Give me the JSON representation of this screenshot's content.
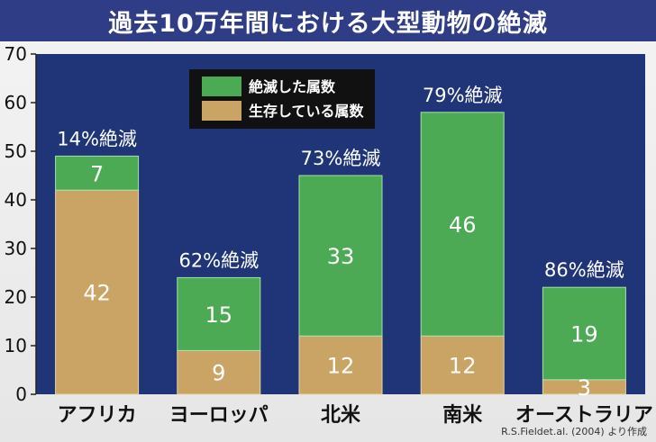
{
  "title": "過去10万年間における大型動物の絶滅",
  "source": "R.S.Fieldet.al. (2004) より作成",
  "chart_data": {
    "type": "bar",
    "stacked": true,
    "categories": [
      "アフリカ",
      "ヨーロッパ",
      "北米",
      "南米",
      "オーストラリア"
    ],
    "series": [
      {
        "name": "生存している属数",
        "values": [
          42,
          9,
          12,
          12,
          3
        ],
        "color": "#c9a464"
      },
      {
        "name": "絶滅した属数",
        "values": [
          7,
          15,
          33,
          46,
          19
        ],
        "color": "#4caa55"
      }
    ],
    "bar_labels": [
      "14%絶滅",
      "62%絶滅",
      "73%絶滅",
      "79%絶滅",
      "86%絶滅"
    ],
    "ylim": [
      0,
      70
    ],
    "yticks": [
      0,
      10,
      20,
      30,
      40,
      50,
      60,
      70
    ],
    "grid": false,
    "legend_position": "top-center",
    "plot_background": "#1f3577"
  }
}
